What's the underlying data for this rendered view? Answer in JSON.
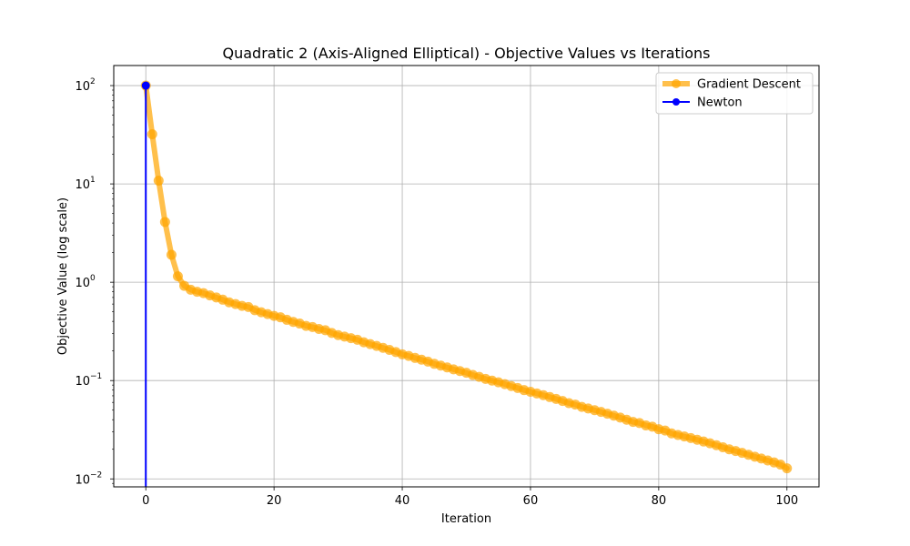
{
  "chart_data": {
    "type": "line",
    "title": "Quadratic 2 (Axis-Aligned Elliptical) - Objective Values vs Iterations",
    "xlabel": "Iteration",
    "ylabel": "Objective Value (log scale)",
    "xlim": [
      -5,
      105
    ],
    "ylim": [
      0.0083,
      160
    ],
    "yscale": "log",
    "grid": true,
    "legend_position": "top-right",
    "x_ticks": [
      {
        "value": 0,
        "label": "0"
      },
      {
        "value": 20,
        "label": "20"
      },
      {
        "value": 40,
        "label": "40"
      },
      {
        "value": 60,
        "label": "60"
      },
      {
        "value": 80,
        "label": "80"
      },
      {
        "value": 100,
        "label": "100"
      }
    ],
    "y_ticks": [
      {
        "value": 0.01,
        "base": "10",
        "exp": "−2"
      },
      {
        "value": 0.1,
        "base": "10",
        "exp": "−1"
      },
      {
        "value": 1,
        "base": "10",
        "exp": "0"
      },
      {
        "value": 10,
        "base": "10",
        "exp": "1"
      },
      {
        "value": 100,
        "base": "10",
        "exp": "2"
      }
    ],
    "series": [
      {
        "name": "Gradient Descent",
        "color": "#ffa500",
        "opacity": 0.7,
        "x": [
          0,
          1,
          2,
          3,
          4,
          5,
          6,
          7,
          8,
          9,
          10,
          11,
          12,
          13,
          14,
          15,
          16,
          17,
          18,
          19,
          20,
          21,
          22,
          23,
          24,
          25,
          26,
          27,
          28,
          29,
          30,
          31,
          32,
          33,
          34,
          35,
          36,
          37,
          38,
          39,
          40,
          41,
          42,
          43,
          44,
          45,
          46,
          47,
          48,
          49,
          50,
          51,
          52,
          53,
          54,
          55,
          56,
          57,
          58,
          59,
          60,
          61,
          62,
          63,
          64,
          65,
          66,
          67,
          68,
          69,
          70,
          71,
          72,
          73,
          74,
          75,
          76,
          77,
          78,
          79,
          80,
          81,
          82,
          83,
          84,
          85,
          86,
          87,
          88,
          89,
          90,
          91,
          92,
          93,
          94,
          95,
          96,
          97,
          98,
          99,
          100
        ],
        "values": [
          100,
          32,
          10.8,
          4.1,
          1.9,
          1.15,
          0.92,
          0.84,
          0.8,
          0.775,
          0.735,
          0.7,
          0.665,
          0.625,
          0.6,
          0.575,
          0.56,
          0.52,
          0.495,
          0.475,
          0.455,
          0.44,
          0.415,
          0.395,
          0.38,
          0.36,
          0.35,
          0.335,
          0.325,
          0.305,
          0.29,
          0.28,
          0.27,
          0.26,
          0.245,
          0.235,
          0.225,
          0.215,
          0.205,
          0.195,
          0.185,
          0.178,
          0.17,
          0.163,
          0.156,
          0.148,
          0.142,
          0.136,
          0.13,
          0.125,
          0.12,
          0.114,
          0.109,
          0.104,
          0.1,
          0.096,
          0.092,
          0.088,
          0.084,
          0.08,
          0.077,
          0.074,
          0.071,
          0.068,
          0.065,
          0.062,
          0.059,
          0.057,
          0.054,
          0.052,
          0.05,
          0.048,
          0.046,
          0.044,
          0.042,
          0.04,
          0.038,
          0.037,
          0.035,
          0.034,
          0.032,
          0.031,
          0.029,
          0.028,
          0.027,
          0.026,
          0.025,
          0.024,
          0.023,
          0.022,
          0.021,
          0.02,
          0.0192,
          0.0184,
          0.0176,
          0.0168,
          0.0161,
          0.0154,
          0.0147,
          0.014,
          0.0128
        ]
      },
      {
        "name": "Newton",
        "color": "#0000ff",
        "x": [
          0,
          0
        ],
        "values": [
          100,
          0.0083
        ]
      }
    ]
  }
}
